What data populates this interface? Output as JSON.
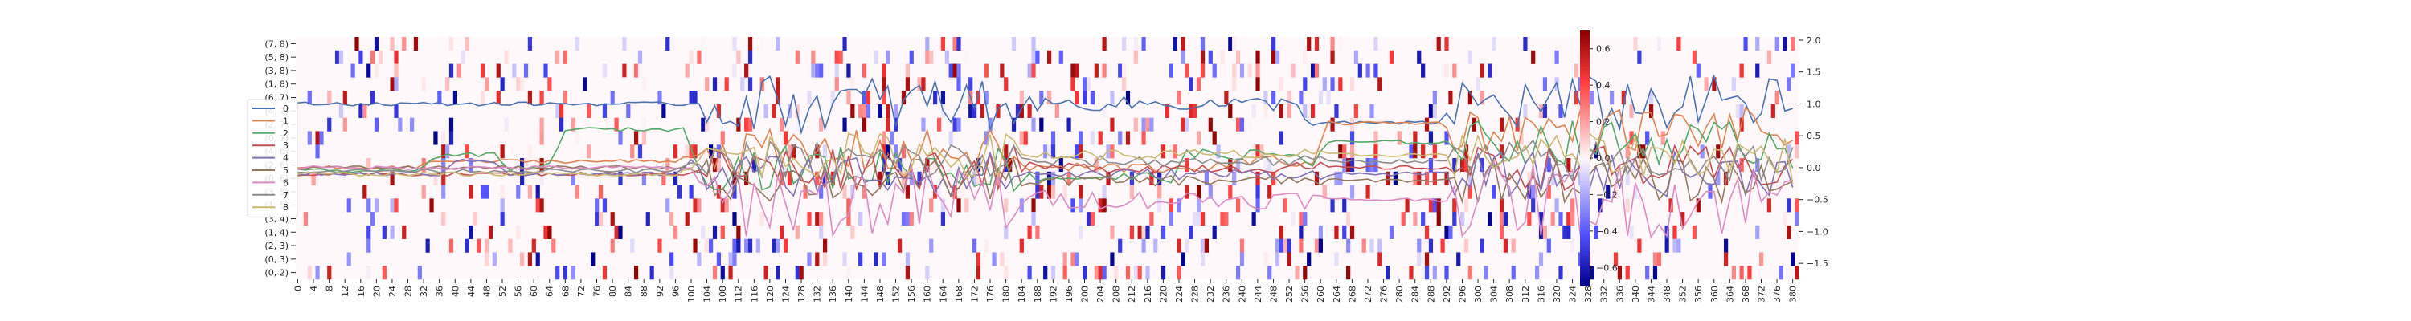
{
  "chart_data": [
    {
      "type": "heatmap",
      "x_ticks": [
        "0",
        "4",
        "8",
        "12",
        "16",
        "20",
        "24",
        "28",
        "32",
        "36",
        "40",
        "44",
        "48",
        "52",
        "56",
        "60",
        "64",
        "68",
        "72",
        "76",
        "80",
        "84",
        "88",
        "92",
        "96",
        "100",
        "104",
        "108",
        "112",
        "116",
        "120",
        "124",
        "128",
        "132",
        "136",
        "140",
        "144",
        "148",
        "152",
        "156",
        "160",
        "164",
        "168",
        "172",
        "176",
        "180",
        "184",
        "188",
        "192",
        "196",
        "200",
        "204",
        "208",
        "212",
        "216",
        "220",
        "224",
        "228",
        "232",
        "236",
        "240",
        "244",
        "248",
        "252",
        "256",
        "260",
        "264",
        "268",
        "272",
        "276",
        "280",
        "284",
        "288",
        "292",
        "296",
        "300",
        "304",
        "308",
        "312",
        "316",
        "320",
        "324",
        "328",
        "332",
        "336",
        "340",
        "344",
        "348",
        "352",
        "356",
        "360",
        "364",
        "368",
        "372",
        "376",
        "380"
      ],
      "x_range": [
        0,
        382
      ],
      "y_labels": [
        "(7, 8)",
        "(5, 8)",
        "(3, 8)",
        "(1, 8)",
        "(6, 7)",
        "(4, 7)",
        "(2, 7)",
        "(0, 7)",
        "(4, 6)",
        "(2, 6)",
        "(0, 6)",
        "(3, 5)",
        "(1, 5)",
        "(3, 4)",
        "(1, 4)",
        "(2, 3)",
        "(0, 3)",
        "(0, 2)"
      ],
      "colorbar": {
        "ticks": [
          "0.6",
          "0.4",
          "0.2",
          "0.0",
          "−0.2",
          "−0.4",
          "−0.6"
        ],
        "range": [
          -0.7,
          0.7
        ],
        "colors": {
          "low": "#00008b",
          "mid": "#fff8fa",
          "high": "#8b0000"
        }
      }
    },
    {
      "type": "line",
      "y_ticks": [
        "2.0",
        "1.5",
        "1.0",
        "0.5",
        "0.0",
        "−0.5",
        "−1.0",
        "−1.5"
      ],
      "y_range": [
        -1.75,
        2.05
      ],
      "legend_position": "left",
      "series": [
        {
          "name": "0",
          "color": "#4c72b0",
          "levels": [
            [
              0,
              1.0
            ],
            [
              52,
              1.0
            ],
            [
              104,
              1.0
            ],
            [
              236,
              1.0
            ],
            [
              258,
              0.7
            ],
            [
              294,
              1.0
            ],
            [
              382,
              0.8
            ]
          ]
        },
        {
          "name": "1",
          "color": "#dd8452",
          "levels": [
            [
              0,
              0.0
            ],
            [
              34,
              0.1
            ],
            [
              40,
              0.1
            ],
            [
              54,
              0.1
            ],
            [
              60,
              0.1
            ],
            [
              100,
              0.2
            ],
            [
              104,
              0.25
            ],
            [
              184,
              0.0
            ],
            [
              240,
              0.1
            ],
            [
              262,
              0.7
            ],
            [
              290,
              0.7
            ],
            [
              294,
              0.6
            ],
            [
              382,
              0.0
            ]
          ]
        },
        {
          "name": "2",
          "color": "#55a868",
          "levels": [
            [
              0,
              -0.05
            ],
            [
              34,
              0.15
            ],
            [
              38,
              0.2
            ],
            [
              54,
              -0.05
            ],
            [
              56,
              0.0
            ],
            [
              64,
              0.05
            ],
            [
              68,
              0.6
            ],
            [
              96,
              0.6
            ],
            [
              102,
              0.0
            ],
            [
              182,
              -0.15
            ],
            [
              226,
              0.2
            ],
            [
              238,
              0.2
            ],
            [
              258,
              0.05
            ],
            [
              262,
              0.4
            ],
            [
              292,
              0.4
            ],
            [
              382,
              0.0
            ]
          ]
        },
        {
          "name": "3",
          "color": "#c44e52",
          "levels": [
            [
              0,
              -0.1
            ],
            [
              100,
              -0.1
            ],
            [
              104,
              0.0
            ],
            [
              382,
              -0.1
            ]
          ]
        },
        {
          "name": "4",
          "color": "#8172b3",
          "levels": [
            [
              0,
              -0.1
            ],
            [
              40,
              0.1
            ],
            [
              54,
              -0.1
            ],
            [
              100,
              0.1
            ],
            [
              104,
              -0.1
            ],
            [
              382,
              0.0
            ]
          ]
        },
        {
          "name": "5",
          "color": "#937860",
          "levels": [
            [
              0,
              0.0
            ],
            [
              100,
              0.0
            ],
            [
              104,
              -0.2
            ],
            [
              382,
              0.1
            ]
          ]
        },
        {
          "name": "6",
          "color": "#da8bc3",
          "levels": [
            [
              0,
              0.0
            ],
            [
              100,
              0.0
            ],
            [
              104,
              -0.5
            ],
            [
              382,
              -0.3
            ]
          ]
        },
        {
          "name": "7",
          "color": "#8c8c8c",
          "levels": [
            [
              0,
              -0.05
            ],
            [
              100,
              0.05
            ],
            [
              104,
              0.1
            ],
            [
              382,
              0.0
            ]
          ]
        },
        {
          "name": "8",
          "color": "#ccb974",
          "levels": [
            [
              0,
              -0.1
            ],
            [
              100,
              0.0
            ],
            [
              104,
              0.2
            ],
            [
              382,
              -0.2
            ]
          ]
        }
      ]
    }
  ]
}
